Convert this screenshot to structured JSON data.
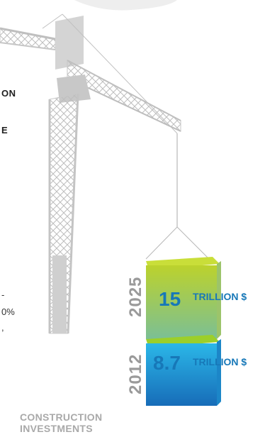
{
  "text_fragments": {
    "line1": "ON",
    "line2": "E",
    "line3": "-",
    "line4": "0%",
    "line5": ","
  },
  "blocks": [
    {
      "year": "2025",
      "value": "15",
      "unit": "TRILLION $",
      "color_top": "#b7cf2a",
      "color_bottom": "#7cbf8c"
    },
    {
      "year": "2012",
      "value": "8.7",
      "unit": "TRILLION $",
      "color_top": "#27b3e6",
      "color_bottom": "#1a73bf"
    }
  ],
  "caption": {
    "line1": "CONSTRUCTION",
    "line2": "INVESTMENTS"
  },
  "colors": {
    "crane": "#cfcfcf",
    "crane_dark": "#bdbdbd",
    "value_text": "#1778b8",
    "year_text": "#9a9a9a"
  },
  "icons": {
    "crane": "tower-crane-icon"
  }
}
